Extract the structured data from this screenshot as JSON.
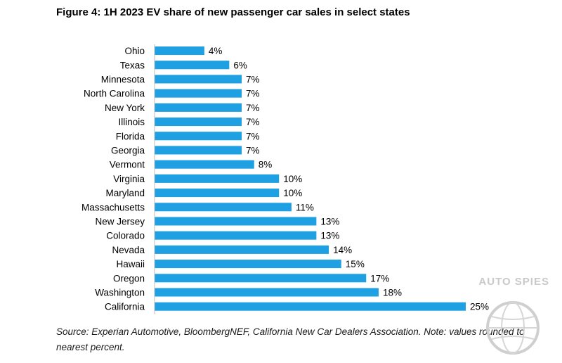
{
  "chart_data": {
    "type": "bar",
    "orientation": "horizontal",
    "title": "Figure 4: 1H 2023 EV share of new passenger car sales in select states",
    "categories": [
      "Ohio",
      "Texas",
      "Minnesota",
      "North Carolina",
      "New York",
      "Illinois",
      "Florida",
      "Georgia",
      "Vermont",
      "Virginia",
      "Maryland",
      "Massachusetts",
      "New Jersey",
      "Colorado",
      "Nevada",
      "Hawaii",
      "Oregon",
      "Washington",
      "California"
    ],
    "values": [
      4,
      6,
      7,
      7,
      7,
      7,
      7,
      7,
      8,
      10,
      10,
      11,
      13,
      13,
      14,
      15,
      17,
      18,
      25
    ],
    "value_labels": [
      "4%",
      "6%",
      "7%",
      "7%",
      "7%",
      "7%",
      "7%",
      "7%",
      "8%",
      "10%",
      "10%",
      "11%",
      "13%",
      "13%",
      "14%",
      "15%",
      "17%",
      "18%",
      "25%"
    ],
    "xlim": [
      0,
      25
    ],
    "bar_color": "#1fa0e3",
    "grid": false,
    "legend": "none"
  },
  "source_note": "Source: Experian Automotive, BloombergNEF, California New Car Dealers Association. Note: values rounded to nearest percent.",
  "watermark": {
    "text": "AUTO SPIES",
    "icon": "globe-icon",
    "color": "#c9c9c9"
  }
}
